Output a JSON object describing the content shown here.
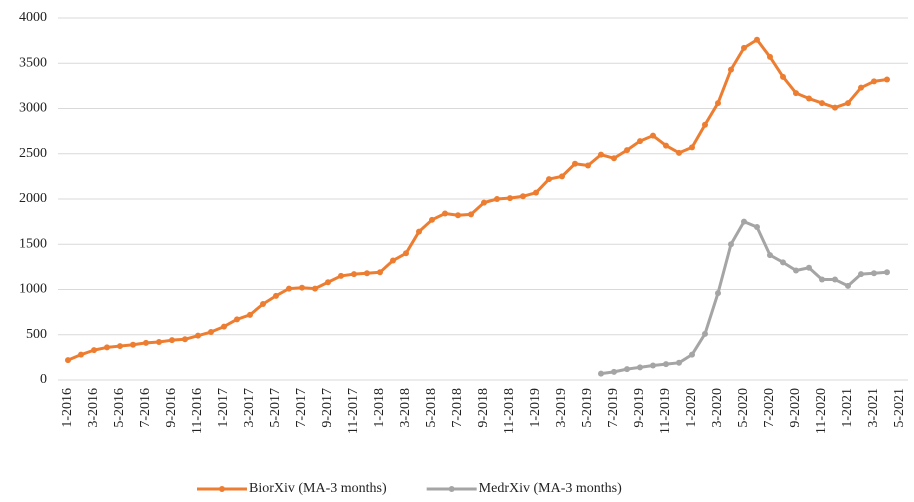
{
  "chart_data": {
    "type": "line",
    "categories": [
      "1-2016",
      null,
      "3-2016",
      null,
      "5-2016",
      null,
      "7-2016",
      null,
      "9-2016",
      null,
      "11-2016",
      null,
      "1-2017",
      null,
      "3-2017",
      null,
      "5-2017",
      null,
      "7-2017",
      null,
      "9-2017",
      null,
      "11-2017",
      null,
      "1-2018",
      null,
      "3-2018",
      null,
      "5-2018",
      null,
      "7-2018",
      null,
      "9-2018",
      null,
      "11-2018",
      null,
      "1-2019",
      null,
      "3-2019",
      null,
      "5-2019",
      null,
      "7-2019",
      null,
      "9-2019",
      null,
      "11-2019",
      null,
      "1-2020",
      null,
      "3-2020",
      null,
      "5-2020",
      null,
      "7-2020",
      null,
      "9-2020",
      null,
      "11-2020",
      null,
      "1-2021",
      null,
      "3-2021",
      null,
      "5-2021"
    ],
    "series": [
      {
        "name": "BiorXiv (MA-3 months)",
        "color": "#ED7D31",
        "values": [
          220,
          280,
          330,
          360,
          375,
          390,
          410,
          420,
          440,
          450,
          490,
          530,
          590,
          670,
          720,
          840,
          930,
          1010,
          1020,
          1010,
          1080,
          1150,
          1170,
          1180,
          1190,
          1320,
          1400,
          1640,
          1770,
          1840,
          1820,
          1830,
          1960,
          2000,
          2010,
          2030,
          2070,
          2220,
          2250,
          2390,
          2370,
          2490,
          2450,
          2540,
          2640,
          2700,
          2590,
          2510,
          2570,
          2820,
          3060,
          3430,
          3670,
          3760,
          3570,
          3350,
          3170,
          3110,
          3060,
          3010,
          3060,
          3230,
          3300,
          3320,
          null
        ]
      },
      {
        "name": "MedrXiv (MA-3 months)",
        "color": "#A5A5A5",
        "values": [
          null,
          null,
          null,
          null,
          null,
          null,
          null,
          null,
          null,
          null,
          null,
          null,
          null,
          null,
          null,
          null,
          null,
          null,
          null,
          null,
          null,
          null,
          null,
          null,
          null,
          null,
          null,
          null,
          null,
          null,
          null,
          null,
          null,
          null,
          null,
          null,
          null,
          null,
          null,
          null,
          null,
          70,
          90,
          120,
          140,
          160,
          175,
          190,
          280,
          510,
          960,
          1500,
          1750,
          1690,
          1380,
          1300,
          1210,
          1240,
          1110,
          1110,
          1040,
          1170,
          1180,
          1190,
          null
        ]
      }
    ],
    "ylim": [
      0,
      4000
    ],
    "yticks": [
      0,
      500,
      1000,
      1500,
      2000,
      2500,
      3000,
      3500,
      4000
    ],
    "grid": true,
    "legend": "bottom"
  }
}
